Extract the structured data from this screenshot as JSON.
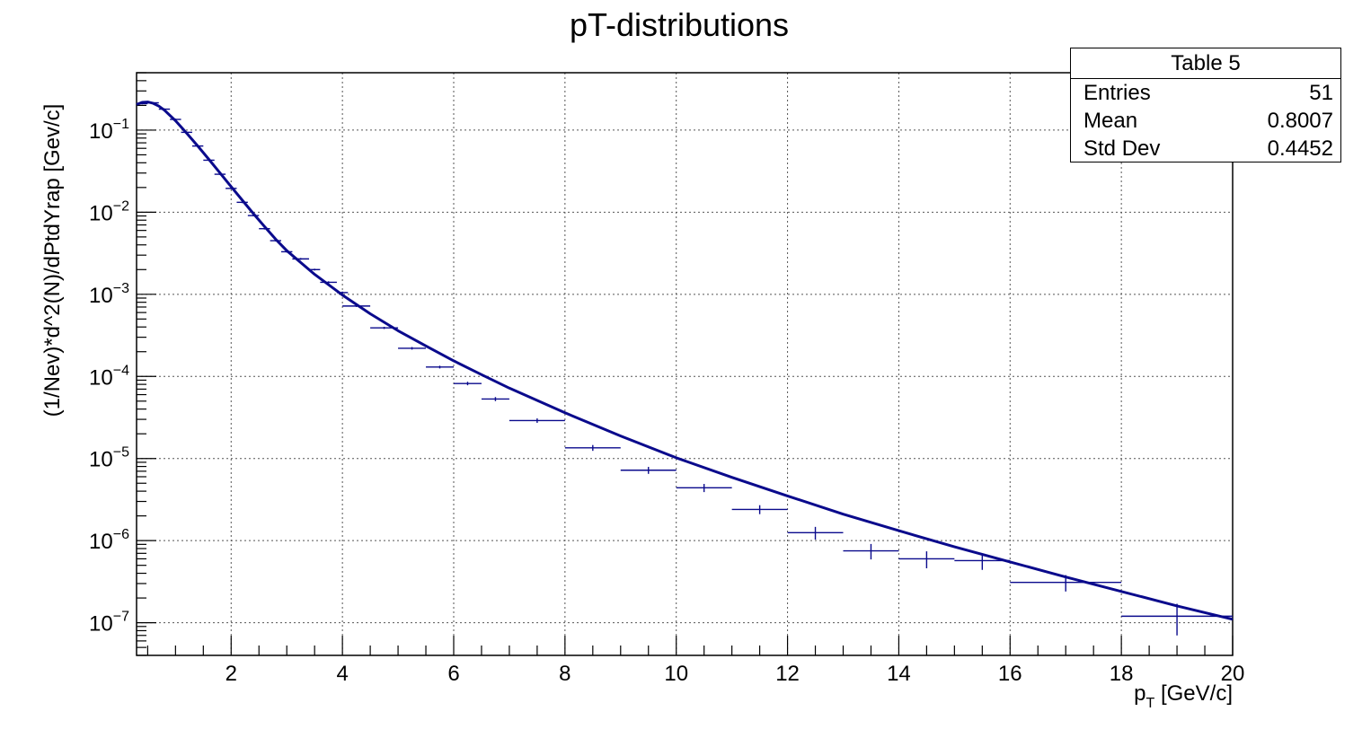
{
  "stats": {
    "title": "Table 5",
    "rows": [
      {
        "label": "Entries",
        "value": "51"
      },
      {
        "label": "Mean",
        "value": "0.8007"
      },
      {
        "label": "Std Dev",
        "value": "0.4452"
      }
    ]
  },
  "colors": {
    "data": "#0a0a8c",
    "curve": "#0a0a8c",
    "frame": "#000000",
    "grid": "#555555"
  },
  "chart_data": {
    "type": "scatter",
    "title": "pT-distributions",
    "xlabel_main": "p",
    "xlabel_sub": "T",
    "xlabel_rest": " [GeV/c]",
    "ylabel": "(1/Nev)*d^2(N)/dPtdYrap  [Gev/c]",
    "xlim": [
      0.3,
      20
    ],
    "ylim": [
      4e-08,
      0.5
    ],
    "yscale": "log",
    "grid": true,
    "x_ticks": [
      2,
      4,
      6,
      8,
      10,
      12,
      14,
      16,
      18,
      20
    ],
    "y_ticks": [
      {
        "base": "10",
        "exp": "−1",
        "value": 0.1
      },
      {
        "base": "10",
        "exp": "−2",
        "value": 0.01
      },
      {
        "base": "10",
        "exp": "−3",
        "value": 0.001
      },
      {
        "base": "10",
        "exp": "−4",
        "value": 0.0001
      },
      {
        "base": "10",
        "exp": "−5",
        "value": 1e-05
      },
      {
        "base": "10",
        "exp": "−6",
        "value": 1e-06
      },
      {
        "base": "10",
        "exp": "−7",
        "value": 1e-07
      }
    ],
    "series": [
      {
        "kind": "histogram-points",
        "points": [
          {
            "x": 0.4,
            "xlo": 0.3,
            "xhi": 0.5,
            "y": 0.21,
            "yerr": 0.004
          },
          {
            "x": 0.6,
            "xlo": 0.5,
            "xhi": 0.7,
            "y": 0.215,
            "yerr": 0.004
          },
          {
            "x": 0.8,
            "xlo": 0.7,
            "xhi": 0.9,
            "y": 0.18,
            "yerr": 0.004
          },
          {
            "x": 1.0,
            "xlo": 0.9,
            "xhi": 1.1,
            "y": 0.135,
            "yerr": 0.003
          },
          {
            "x": 1.2,
            "xlo": 1.1,
            "xhi": 1.3,
            "y": 0.094,
            "yerr": 0.002
          },
          {
            "x": 1.4,
            "xlo": 1.3,
            "xhi": 1.5,
            "y": 0.064,
            "yerr": 0.0015
          },
          {
            "x": 1.6,
            "xlo": 1.5,
            "xhi": 1.7,
            "y": 0.043,
            "yerr": 0.001
          },
          {
            "x": 1.8,
            "xlo": 1.7,
            "xhi": 1.9,
            "y": 0.029,
            "yerr": 0.0007
          },
          {
            "x": 2.0,
            "xlo": 1.9,
            "xhi": 2.1,
            "y": 0.0195,
            "yerr": 0.0005
          },
          {
            "x": 2.2,
            "xlo": 2.1,
            "xhi": 2.3,
            "y": 0.0132,
            "yerr": 0.0003
          },
          {
            "x": 2.4,
            "xlo": 2.3,
            "xhi": 2.5,
            "y": 0.0091,
            "yerr": 0.0002
          },
          {
            "x": 2.6,
            "xlo": 2.5,
            "xhi": 2.7,
            "y": 0.0063,
            "yerr": 0.00015
          },
          {
            "x": 2.8,
            "xlo": 2.7,
            "xhi": 2.9,
            "y": 0.0045,
            "yerr": 0.0001
          },
          {
            "x": 3.0,
            "xlo": 2.9,
            "xhi": 3.1,
            "y": 0.0033,
            "yerr": 8e-05
          },
          {
            "x": 3.25,
            "xlo": 3.1,
            "xhi": 3.4,
            "y": 0.0027,
            "yerr": 7e-05
          },
          {
            "x": 3.5,
            "xlo": 3.4,
            "xhi": 3.6,
            "y": 0.002,
            "yerr": 5e-05
          },
          {
            "x": 3.75,
            "xlo": 3.6,
            "xhi": 3.9,
            "y": 0.0014,
            "yerr": 4e-05
          },
          {
            "x": 4.0,
            "xlo": 3.9,
            "xhi": 4.1,
            "y": 0.00105,
            "yerr": 3e-05
          },
          {
            "x": 4.25,
            "xlo": 4.0,
            "xhi": 4.5,
            "y": 0.00072,
            "yerr": 2e-05
          },
          {
            "x": 4.75,
            "xlo": 4.5,
            "xhi": 5.0,
            "y": 0.00039,
            "yerr": 1.2e-05
          },
          {
            "x": 5.25,
            "xlo": 5.0,
            "xhi": 5.5,
            "y": 0.00022,
            "yerr": 8e-06
          },
          {
            "x": 5.75,
            "xlo": 5.5,
            "xhi": 6.0,
            "y": 0.00013,
            "yerr": 5e-06
          },
          {
            "x": 6.25,
            "xlo": 6.0,
            "xhi": 6.5,
            "y": 8.2e-05,
            "yerr": 4e-06
          },
          {
            "x": 6.75,
            "xlo": 6.5,
            "xhi": 7.0,
            "y": 5.3e-05,
            "yerr": 3e-06
          },
          {
            "x": 7.5,
            "xlo": 7.0,
            "xhi": 8.0,
            "y": 2.9e-05,
            "yerr": 1.8e-06
          },
          {
            "x": 8.5,
            "xlo": 8.0,
            "xhi": 9.0,
            "y": 1.35e-05,
            "yerr": 1.1e-06
          },
          {
            "x": 9.5,
            "xlo": 9.0,
            "xhi": 10.0,
            "y": 7.2e-06,
            "yerr": 7e-07
          },
          {
            "x": 10.5,
            "xlo": 10.0,
            "xhi": 11.0,
            "y": 4.4e-06,
            "yerr": 5e-07
          },
          {
            "x": 11.5,
            "xlo": 11.0,
            "xhi": 12.0,
            "y": 2.4e-06,
            "yerr": 3e-07
          },
          {
            "x": 12.5,
            "xlo": 12.0,
            "xhi": 13.0,
            "y": 1.25e-06,
            "yerr": 2.2e-07
          },
          {
            "x": 13.5,
            "xlo": 13.0,
            "xhi": 14.0,
            "y": 7.5e-07,
            "yerr": 1.6e-07
          },
          {
            "x": 14.5,
            "xlo": 14.0,
            "xhi": 15.0,
            "y": 6e-07,
            "yerr": 1.4e-07
          },
          {
            "x": 15.5,
            "xlo": 15.0,
            "xhi": 16.0,
            "y": 5.7e-07,
            "yerr": 1.3e-07
          },
          {
            "x": 17.0,
            "xlo": 16.0,
            "xhi": 18.0,
            "y": 3.1e-07,
            "yerr": 7e-08
          },
          {
            "x": 19.0,
            "xlo": 18.0,
            "xhi": 20.0,
            "y": 1.2e-07,
            "yerr": 5e-08
          }
        ]
      },
      {
        "kind": "curve",
        "points": [
          [
            0.3,
            0.205
          ],
          [
            0.4,
            0.218
          ],
          [
            0.5,
            0.22
          ],
          [
            0.6,
            0.212
          ],
          [
            0.7,
            0.196
          ],
          [
            0.8,
            0.175
          ],
          [
            1.0,
            0.13
          ],
          [
            1.2,
            0.092
          ],
          [
            1.4,
            0.064
          ],
          [
            1.6,
            0.044
          ],
          [
            1.8,
            0.03
          ],
          [
            2.0,
            0.0205
          ],
          [
            2.2,
            0.014
          ],
          [
            2.4,
            0.0096
          ],
          [
            2.6,
            0.0067
          ],
          [
            2.8,
            0.0047
          ],
          [
            3.0,
            0.0034
          ],
          [
            3.5,
            0.00175
          ],
          [
            4.0,
            0.00098
          ],
          [
            4.5,
            0.00058
          ],
          [
            5.0,
            0.00036
          ],
          [
            5.5,
            0.000235
          ],
          [
            6.0,
            0.000155
          ],
          [
            6.5,
            0.000105
          ],
          [
            7.0,
            7.2e-05
          ],
          [
            7.5,
            5.1e-05
          ],
          [
            8.0,
            3.6e-05
          ],
          [
            9.0,
            1.88e-05
          ],
          [
            10.0,
            1.02e-05
          ],
          [
            11.0,
            5.9e-06
          ],
          [
            12.0,
            3.5e-06
          ],
          [
            13.0,
            2.1e-06
          ],
          [
            14.0,
            1.32e-06
          ],
          [
            15.0,
            8.4e-07
          ],
          [
            16.0,
            5.5e-07
          ],
          [
            17.0,
            3.6e-07
          ],
          [
            18.0,
            2.4e-07
          ],
          [
            19.0,
            1.6e-07
          ],
          [
            20.0,
            1.1e-07
          ]
        ]
      }
    ]
  }
}
